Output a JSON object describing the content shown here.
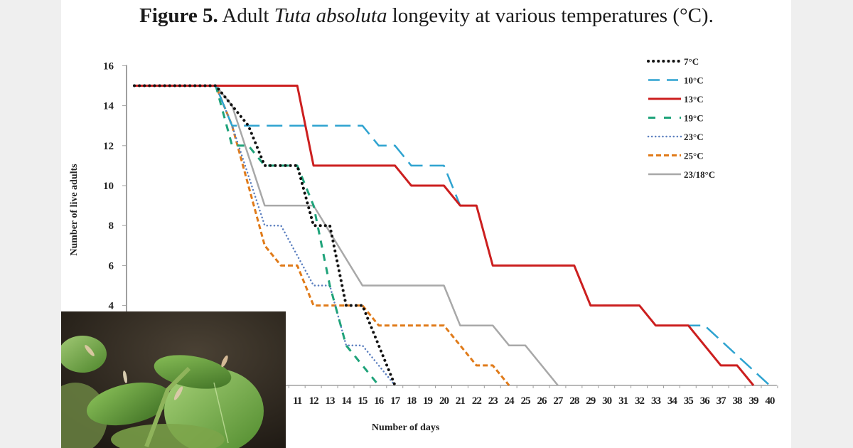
{
  "figure": {
    "label": "Figure 5.",
    "title_pre": "Adult",
    "title_italic": "Tuta absoluta",
    "title_post": "longevity at various temperatures (°C)."
  },
  "photo": {
    "description": "tomato-leaves-with-moths-photo"
  },
  "chart_data": {
    "type": "line",
    "title": "Figure 5. Adult Tuta absoluta longevity at various temperatures (°C).",
    "xlabel": "Number of days",
    "ylabel": "Number of live adults",
    "ylim": [
      0,
      16
    ],
    "xlim": [
      1,
      40
    ],
    "yticks": [
      4,
      6,
      8,
      10,
      12,
      14,
      16
    ],
    "xticks_visible": [
      11,
      12,
      13,
      14,
      15,
      16,
      17,
      18,
      19,
      20,
      21,
      22,
      23,
      24,
      25,
      26,
      27,
      28,
      29,
      30,
      31,
      32,
      33,
      34,
      35,
      36,
      37,
      38,
      39,
      40
    ],
    "grid": false,
    "legend_position": "upper right",
    "series": [
      {
        "name": "7°C",
        "color": "#111111",
        "style": "dotted",
        "points": [
          [
            1,
            15
          ],
          [
            6,
            15
          ],
          [
            8,
            13
          ],
          [
            9,
            11
          ],
          [
            11,
            11
          ],
          [
            12,
            8
          ],
          [
            13,
            8
          ],
          [
            14,
            4
          ],
          [
            15,
            4
          ],
          [
            17,
            0
          ]
        ]
      },
      {
        "name": "10°C",
        "color": "#2ea3d0",
        "style": "long-dash",
        "points": [
          [
            1,
            15
          ],
          [
            6,
            15
          ],
          [
            7,
            13
          ],
          [
            15,
            13
          ],
          [
            16,
            12
          ],
          [
            17,
            12
          ],
          [
            18,
            11
          ],
          [
            20,
            11
          ],
          [
            21,
            9
          ],
          [
            22,
            9
          ],
          [
            23,
            6
          ],
          [
            28,
            6
          ],
          [
            29,
            4
          ],
          [
            32,
            4
          ],
          [
            33,
            3
          ],
          [
            36,
            3
          ],
          [
            38,
            1.5
          ],
          [
            40,
            0
          ]
        ]
      },
      {
        "name": "13°C",
        "color": "#cc1f1f",
        "style": "solid",
        "points": [
          [
            1,
            15
          ],
          [
            11,
            15
          ],
          [
            12,
            11
          ],
          [
            17,
            11
          ],
          [
            18,
            10
          ],
          [
            20,
            10
          ],
          [
            21,
            9
          ],
          [
            22,
            9
          ],
          [
            23,
            6
          ],
          [
            28,
            6
          ],
          [
            29,
            4
          ],
          [
            32,
            4
          ],
          [
            33,
            3
          ],
          [
            35,
            3
          ],
          [
            37,
            1
          ],
          [
            38,
            1
          ],
          [
            39,
            0
          ]
        ]
      },
      {
        "name": "19°C",
        "color": "#1fa37a",
        "style": "dash",
        "points": [
          [
            1,
            15
          ],
          [
            6,
            15
          ],
          [
            7,
            12
          ],
          [
            8,
            12
          ],
          [
            9,
            11
          ],
          [
            11,
            11
          ],
          [
            12,
            9
          ],
          [
            13,
            5
          ],
          [
            14,
            2
          ],
          [
            16,
            0
          ]
        ]
      },
      {
        "name": "23°C",
        "color": "#5b7fbf",
        "style": "dotted-small",
        "points": [
          [
            1,
            15
          ],
          [
            6,
            15
          ],
          [
            7,
            13
          ],
          [
            9,
            8
          ],
          [
            10,
            8
          ],
          [
            12,
            5
          ],
          [
            13,
            5
          ],
          [
            14,
            2
          ],
          [
            15,
            2
          ],
          [
            17,
            0
          ]
        ]
      },
      {
        "name": "25°C",
        "color": "#e07b1a",
        "style": "short-dash",
        "points": [
          [
            1,
            15
          ],
          [
            6,
            15
          ],
          [
            7,
            13
          ],
          [
            9,
            7
          ],
          [
            10,
            6
          ],
          [
            11,
            6
          ],
          [
            12,
            4
          ],
          [
            15,
            4
          ],
          [
            16,
            3
          ],
          [
            20,
            3
          ],
          [
            22,
            1
          ],
          [
            23,
            1
          ],
          [
            24,
            0
          ]
        ]
      },
      {
        "name": "23/18°C",
        "color": "#a8a8a8",
        "style": "solid",
        "points": [
          [
            1,
            15
          ],
          [
            6,
            15
          ],
          [
            7,
            14
          ],
          [
            9,
            9
          ],
          [
            12,
            9
          ],
          [
            15,
            5
          ],
          [
            20,
            5
          ],
          [
            21,
            3
          ],
          [
            23,
            3
          ],
          [
            24,
            2
          ],
          [
            25,
            2
          ],
          [
            27,
            0
          ]
        ]
      }
    ]
  }
}
